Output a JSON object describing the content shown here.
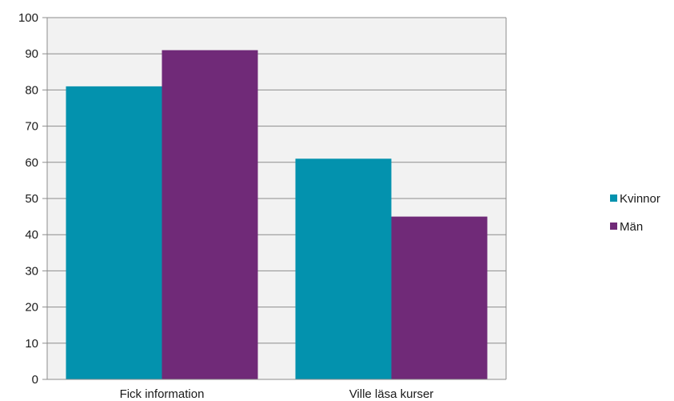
{
  "chart_data": {
    "type": "bar",
    "categories": [
      "Fick information",
      "Ville läsa kurser"
    ],
    "series": [
      {
        "name": "Kvinnor",
        "values": [
          81,
          61
        ],
        "color": "#0392AE"
      },
      {
        "name": "Män",
        "values": [
          91,
          45
        ],
        "color": "#702A78"
      }
    ],
    "yticks": [
      "0",
      "10",
      "20",
      "30",
      "40",
      "50",
      "60",
      "70",
      "80",
      "90",
      "100"
    ],
    "ylim": [
      0,
      100
    ],
    "grid": true,
    "plot_background": "#F2F2F2",
    "legend_position": "right"
  }
}
